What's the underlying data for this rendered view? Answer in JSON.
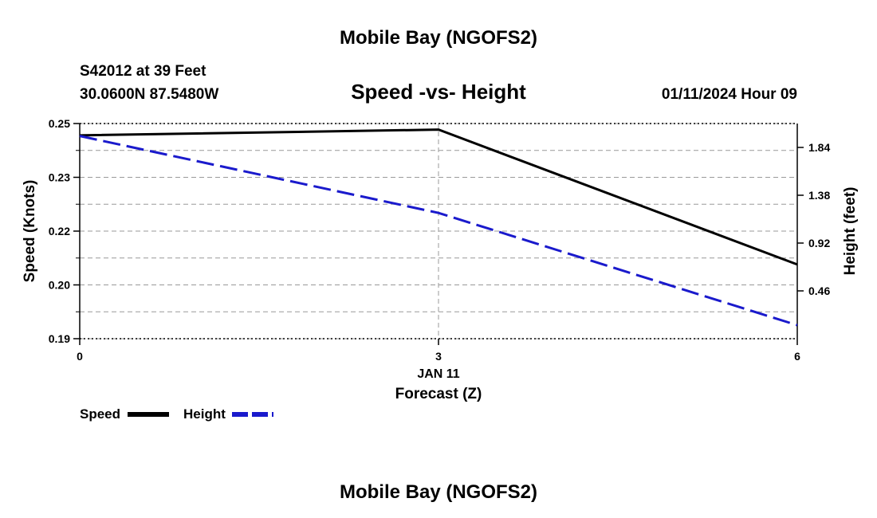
{
  "chart_data": {
    "type": "line",
    "title": "Mobile Bay (NGOFS2)",
    "subtitle": "Speed -vs- Height",
    "station": "S42012 at 39 Feet",
    "location": "30.0600N  87.5480W",
    "date_label": "01/11/2024 Hour 09",
    "bottom_title": "Mobile Bay (NGOFS2)",
    "x": [
      0,
      3,
      6
    ],
    "x_ticks": [
      "0",
      "3",
      "6"
    ],
    "x_date_label": "JAN 11",
    "xlabel": "Forecast (Z)",
    "xlim": [
      0,
      6
    ],
    "ylabel": "Speed (Knots)",
    "y_ticks": [
      "0.19",
      "0.20",
      "0.22",
      "0.23",
      "0.25"
    ],
    "ylim": [
      0.19,
      0.25
    ],
    "y2label": "Height (feet)",
    "y2_ticks": [
      "0.46",
      "0.92",
      "1.38",
      "1.84"
    ],
    "y2_tick_values": [
      0.46,
      0.92,
      1.38,
      1.84
    ],
    "y2lim": [
      0.0,
      2.07
    ],
    "grid": true,
    "legend_position": "bottom-left",
    "series": [
      {
        "name": "Speed",
        "axis": "left",
        "values": [
          0.2467,
          0.2483,
          0.2107
        ],
        "color": "#000000",
        "style": "solid"
      },
      {
        "name": "Height",
        "axis": "right",
        "values": [
          1.95,
          1.21,
          0.13
        ],
        "color": "#1a1acc",
        "style": "dashed"
      }
    ]
  }
}
